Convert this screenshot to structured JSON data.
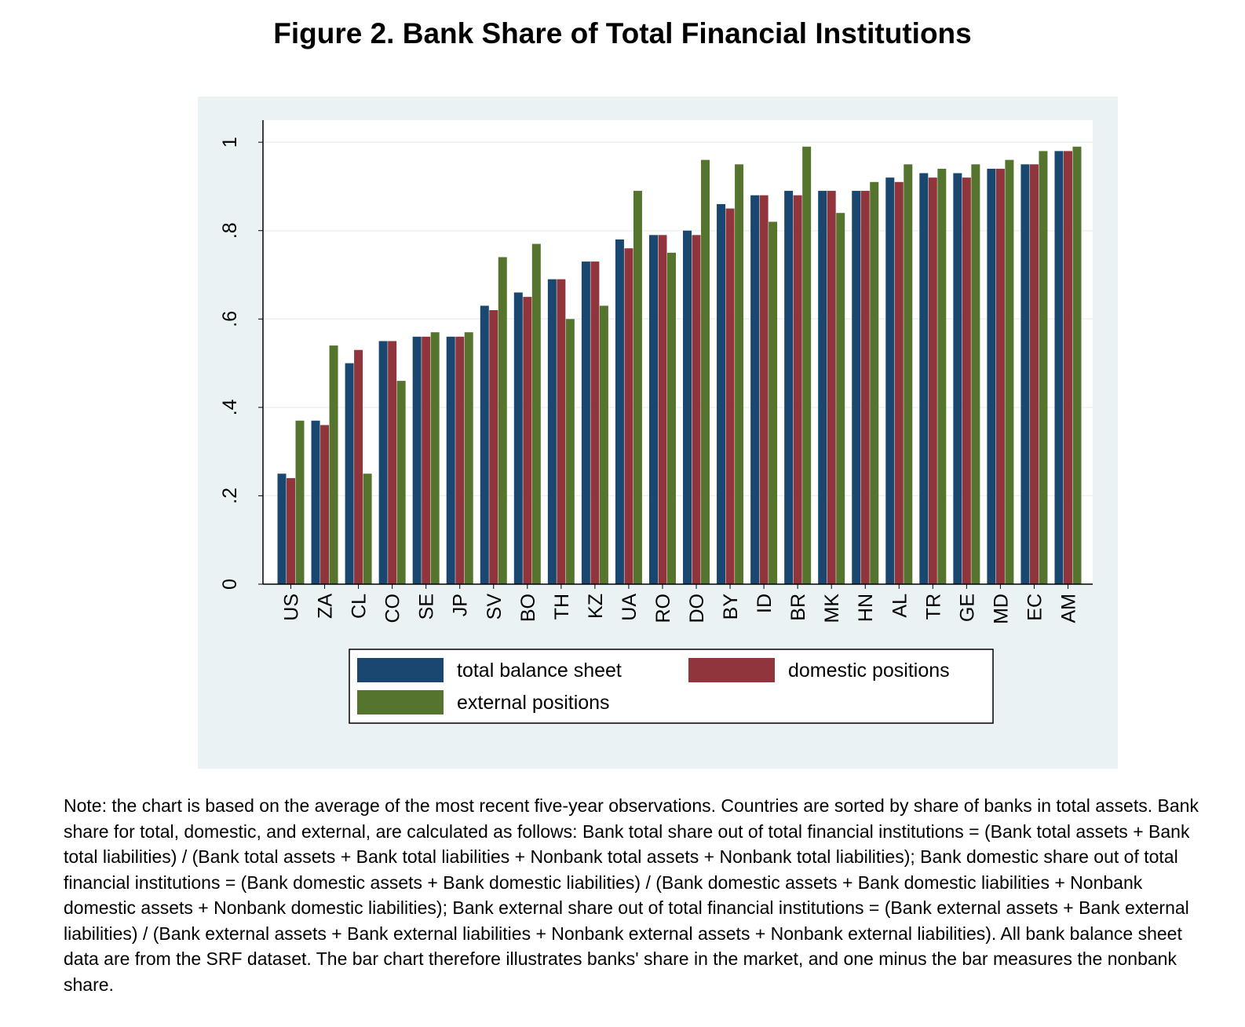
{
  "title": "Figure 2. Bank Share of Total Financial Institutions",
  "note": "Note: the chart is based on the average of the most recent five-year observations. Countries are sorted by share of banks in total assets. Bank share for total, domestic, and external, are calculated as follows: Bank total share out of total financial institutions = (Bank total assets + Bank total liabilities) / (Bank total assets + Bank total liabilities + Nonbank total assets + Nonbank total liabilities); Bank domestic share out of total financial institutions = (Bank domestic assets + Bank domestic liabilities) / (Bank domestic assets + Bank domestic liabilities + Nonbank domestic assets + Nonbank domestic liabilities); Bank external share out of total financial institutions = (Bank external assets + Bank external liabilities) / (Bank external assets + Bank external liabilities + Nonbank external assets + Nonbank external liabilities). All bank balance sheet data are from the SRF dataset. The bar chart therefore illustrates banks' share in the market, and one minus the bar measures the nonbank share.",
  "colors": {
    "outer_background": "#eaf2f3",
    "plot_background": "#ffffff",
    "grid": "#eaf2f3"
  },
  "chart_data": {
    "type": "bar",
    "categories": [
      "US",
      "ZA",
      "CL",
      "CO",
      "SE",
      "JP",
      "SV",
      "BO",
      "TH",
      "KZ",
      "UA",
      "RO",
      "DO",
      "BY",
      "ID",
      "BR",
      "MK",
      "HN",
      "AL",
      "TR",
      "GE",
      "MD",
      "EC",
      "AM"
    ],
    "series": [
      {
        "name": "total balance sheet",
        "color": "#1a476f",
        "values": [
          0.25,
          0.37,
          0.5,
          0.55,
          0.56,
          0.56,
          0.63,
          0.66,
          0.69,
          0.73,
          0.78,
          0.79,
          0.8,
          0.86,
          0.88,
          0.89,
          0.89,
          0.89,
          0.92,
          0.93,
          0.93,
          0.94,
          0.95,
          0.98
        ]
      },
      {
        "name": "domestic positions",
        "color": "#90353b",
        "values": [
          0.24,
          0.36,
          0.53,
          0.55,
          0.56,
          0.56,
          0.62,
          0.65,
          0.69,
          0.73,
          0.76,
          0.79,
          0.79,
          0.85,
          0.88,
          0.88,
          0.89,
          0.89,
          0.91,
          0.92,
          0.92,
          0.94,
          0.95,
          0.98
        ]
      },
      {
        "name": "external positions",
        "color": "#55752f",
        "values": [
          0.37,
          0.54,
          0.25,
          0.46,
          0.57,
          0.57,
          0.74,
          0.77,
          0.6,
          0.63,
          0.89,
          0.75,
          0.96,
          0.95,
          0.82,
          0.99,
          0.84,
          0.91,
          0.95,
          0.94,
          0.95,
          0.96,
          0.98,
          0.99
        ]
      }
    ],
    "ylim": [
      0,
      1.05
    ],
    "yticks": [
      0,
      0.2,
      0.4,
      0.6,
      0.8,
      1
    ],
    "ytick_labels": [
      "0",
      ".2",
      ".4",
      ".6",
      ".8",
      "1"
    ],
    "xlabel": "",
    "ylabel": "",
    "grid": true,
    "legend_position": "bottom"
  }
}
